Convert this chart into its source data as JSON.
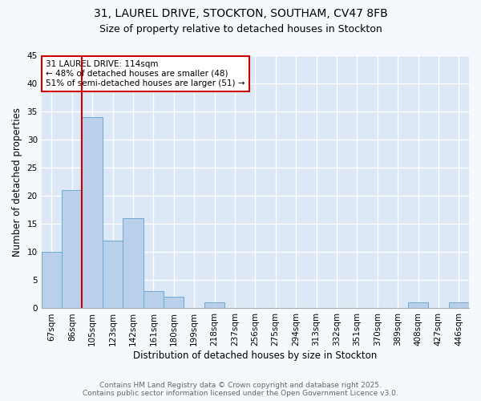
{
  "title_line1": "31, LAUREL DRIVE, STOCKTON, SOUTHAM, CV47 8FB",
  "title_line2": "Size of property relative to detached houses in Stockton",
  "xlabel": "Distribution of detached houses by size in Stockton",
  "ylabel": "Number of detached properties",
  "bins": [
    "67sqm",
    "86sqm",
    "105sqm",
    "123sqm",
    "142sqm",
    "161sqm",
    "180sqm",
    "199sqm",
    "218sqm",
    "237sqm",
    "256sqm",
    "275sqm",
    "294sqm",
    "313sqm",
    "332sqm",
    "351sqm",
    "370sqm",
    "389sqm",
    "408sqm",
    "427sqm",
    "446sqm"
  ],
  "values": [
    10,
    21,
    34,
    12,
    16,
    3,
    2,
    0,
    1,
    0,
    0,
    0,
    0,
    0,
    0,
    0,
    0,
    0,
    1,
    0,
    1
  ],
  "bar_color": "#b8d0ea",
  "bar_edge_color": "#6fa8d4",
  "background_color": "#dce8f5",
  "grid_color": "#ffffff",
  "vline_color": "#cc0000",
  "vline_index": 2,
  "annotation_text": "31 LAUREL DRIVE: 114sqm\n← 48% of detached houses are smaller (48)\n51% of semi-detached houses are larger (51) →",
  "annotation_box_color": "#ffffff",
  "annotation_box_edge": "#cc0000",
  "ylim": [
    0,
    45
  ],
  "yticks": [
    0,
    5,
    10,
    15,
    20,
    25,
    30,
    35,
    40,
    45
  ],
  "footer_line1": "Contains HM Land Registry data © Crown copyright and database right 2025.",
  "footer_line2": "Contains public sector information licensed under the Open Government Licence v3.0.",
  "title_fontsize": 10,
  "subtitle_fontsize": 9,
  "axis_label_fontsize": 8.5,
  "tick_fontsize": 7.5,
  "annotation_fontsize": 7.5,
  "footer_fontsize": 6.5
}
